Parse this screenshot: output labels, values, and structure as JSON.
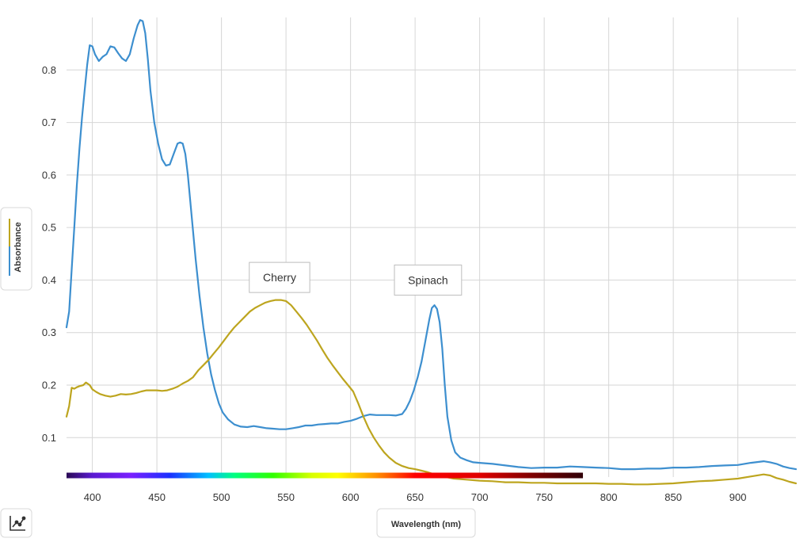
{
  "chart_data": {
    "type": "line",
    "title": "",
    "xlabel": "Wavelength (nm)",
    "ylabel": "Absorbance",
    "xlim": [
      380,
      945
    ],
    "ylim": [
      0.025,
      0.9
    ],
    "x_ticks": [
      400,
      450,
      500,
      550,
      600,
      650,
      700,
      750,
      800,
      850,
      900
    ],
    "y_ticks": [
      0.1,
      0.2,
      0.3,
      0.4,
      0.5,
      0.6,
      0.7,
      0.8
    ],
    "grid": true,
    "legend": "none",
    "series": [
      {
        "name": "Spinach",
        "color": "#3d8fcf",
        "points": [
          [
            380,
            0.31
          ],
          [
            382,
            0.34
          ],
          [
            384,
            0.42
          ],
          [
            386,
            0.5
          ],
          [
            388,
            0.58
          ],
          [
            390,
            0.65
          ],
          [
            392,
            0.71
          ],
          [
            394,
            0.76
          ],
          [
            396,
            0.81
          ],
          [
            398,
            0.847
          ],
          [
            400,
            0.845
          ],
          [
            402,
            0.83
          ],
          [
            405,
            0.817
          ],
          [
            408,
            0.825
          ],
          [
            411,
            0.83
          ],
          [
            414,
            0.845
          ],
          [
            417,
            0.843
          ],
          [
            420,
            0.832
          ],
          [
            423,
            0.822
          ],
          [
            426,
            0.817
          ],
          [
            429,
            0.83
          ],
          [
            432,
            0.86
          ],
          [
            435,
            0.885
          ],
          [
            437,
            0.895
          ],
          [
            439,
            0.893
          ],
          [
            441,
            0.87
          ],
          [
            443,
            0.82
          ],
          [
            445,
            0.76
          ],
          [
            448,
            0.7
          ],
          [
            451,
            0.66
          ],
          [
            454,
            0.63
          ],
          [
            457,
            0.618
          ],
          [
            460,
            0.62
          ],
          [
            463,
            0.64
          ],
          [
            466,
            0.66
          ],
          [
            468,
            0.662
          ],
          [
            470,
            0.66
          ],
          [
            472,
            0.64
          ],
          [
            474,
            0.6
          ],
          [
            477,
            0.52
          ],
          [
            480,
            0.44
          ],
          [
            483,
            0.37
          ],
          [
            486,
            0.31
          ],
          [
            489,
            0.26
          ],
          [
            492,
            0.22
          ],
          [
            495,
            0.19
          ],
          [
            498,
            0.165
          ],
          [
            501,
            0.148
          ],
          [
            505,
            0.135
          ],
          [
            510,
            0.125
          ],
          [
            515,
            0.121
          ],
          [
            520,
            0.12
          ],
          [
            525,
            0.122
          ],
          [
            530,
            0.12
          ],
          [
            535,
            0.118
          ],
          [
            540,
            0.117
          ],
          [
            545,
            0.116
          ],
          [
            550,
            0.116
          ],
          [
            555,
            0.118
          ],
          [
            560,
            0.12
          ],
          [
            565,
            0.123
          ],
          [
            570,
            0.123
          ],
          [
            575,
            0.125
          ],
          [
            580,
            0.126
          ],
          [
            585,
            0.127
          ],
          [
            590,
            0.127
          ],
          [
            595,
            0.13
          ],
          [
            600,
            0.132
          ],
          [
            605,
            0.136
          ],
          [
            610,
            0.141
          ],
          [
            615,
            0.144
          ],
          [
            620,
            0.143
          ],
          [
            625,
            0.143
          ],
          [
            630,
            0.143
          ],
          [
            635,
            0.142
          ],
          [
            640,
            0.145
          ],
          [
            643,
            0.155
          ],
          [
            646,
            0.17
          ],
          [
            649,
            0.19
          ],
          [
            652,
            0.215
          ],
          [
            655,
            0.245
          ],
          [
            658,
            0.285
          ],
          [
            661,
            0.325
          ],
          [
            663,
            0.347
          ],
          [
            665,
            0.352
          ],
          [
            667,
            0.345
          ],
          [
            669,
            0.32
          ],
          [
            671,
            0.27
          ],
          [
            673,
            0.2
          ],
          [
            675,
            0.14
          ],
          [
            678,
            0.095
          ],
          [
            681,
            0.072
          ],
          [
            685,
            0.062
          ],
          [
            690,
            0.057
          ],
          [
            695,
            0.053
          ],
          [
            700,
            0.052
          ],
          [
            710,
            0.05
          ],
          [
            720,
            0.047
          ],
          [
            730,
            0.044
          ],
          [
            740,
            0.042
          ],
          [
            750,
            0.043
          ],
          [
            760,
            0.043
          ],
          [
            770,
            0.045
          ],
          [
            780,
            0.044
          ],
          [
            790,
            0.043
          ],
          [
            800,
            0.042
          ],
          [
            810,
            0.04
          ],
          [
            820,
            0.04
          ],
          [
            830,
            0.041
          ],
          [
            840,
            0.041
          ],
          [
            850,
            0.043
          ],
          [
            860,
            0.043
          ],
          [
            870,
            0.044
          ],
          [
            880,
            0.046
          ],
          [
            890,
            0.047
          ],
          [
            900,
            0.048
          ],
          [
            910,
            0.052
          ],
          [
            920,
            0.055
          ],
          [
            925,
            0.053
          ],
          [
            930,
            0.05
          ],
          [
            935,
            0.045
          ],
          [
            940,
            0.042
          ],
          [
            945,
            0.04
          ]
        ]
      },
      {
        "name": "Cherry",
        "color": "#bda51f",
        "points": [
          [
            380,
            0.14
          ],
          [
            382,
            0.16
          ],
          [
            384,
            0.195
          ],
          [
            386,
            0.193
          ],
          [
            388,
            0.196
          ],
          [
            390,
            0.198
          ],
          [
            393,
            0.2
          ],
          [
            395,
            0.205
          ],
          [
            398,
            0.2
          ],
          [
            400,
            0.192
          ],
          [
            403,
            0.187
          ],
          [
            406,
            0.183
          ],
          [
            410,
            0.18
          ],
          [
            414,
            0.178
          ],
          [
            418,
            0.18
          ],
          [
            422,
            0.183
          ],
          [
            426,
            0.182
          ],
          [
            430,
            0.183
          ],
          [
            434,
            0.185
          ],
          [
            438,
            0.188
          ],
          [
            442,
            0.19
          ],
          [
            446,
            0.19
          ],
          [
            450,
            0.19
          ],
          [
            454,
            0.189
          ],
          [
            458,
            0.19
          ],
          [
            462,
            0.193
          ],
          [
            466,
            0.197
          ],
          [
            470,
            0.203
          ],
          [
            474,
            0.208
          ],
          [
            478,
            0.215
          ],
          [
            482,
            0.228
          ],
          [
            486,
            0.238
          ],
          [
            490,
            0.248
          ],
          [
            494,
            0.26
          ],
          [
            498,
            0.272
          ],
          [
            502,
            0.285
          ],
          [
            506,
            0.298
          ],
          [
            510,
            0.31
          ],
          [
            514,
            0.32
          ],
          [
            518,
            0.33
          ],
          [
            522,
            0.34
          ],
          [
            526,
            0.347
          ],
          [
            530,
            0.352
          ],
          [
            534,
            0.357
          ],
          [
            538,
            0.36
          ],
          [
            542,
            0.362
          ],
          [
            546,
            0.362
          ],
          [
            550,
            0.36
          ],
          [
            554,
            0.352
          ],
          [
            558,
            0.34
          ],
          [
            562,
            0.328
          ],
          [
            566,
            0.315
          ],
          [
            570,
            0.3
          ],
          [
            574,
            0.285
          ],
          [
            578,
            0.268
          ],
          [
            582,
            0.252
          ],
          [
            586,
            0.238
          ],
          [
            590,
            0.225
          ],
          [
            594,
            0.212
          ],
          [
            598,
            0.2
          ],
          [
            602,
            0.188
          ],
          [
            606,
            0.165
          ],
          [
            610,
            0.14
          ],
          [
            614,
            0.118
          ],
          [
            618,
            0.1
          ],
          [
            622,
            0.085
          ],
          [
            626,
            0.072
          ],
          [
            630,
            0.062
          ],
          [
            635,
            0.052
          ],
          [
            640,
            0.046
          ],
          [
            645,
            0.042
          ],
          [
            650,
            0.04
          ],
          [
            655,
            0.037
          ],
          [
            660,
            0.034
          ],
          [
            665,
            0.03
          ],
          [
            670,
            0.027
          ],
          [
            680,
            0.022
          ],
          [
            690,
            0.02
          ],
          [
            700,
            0.018
          ],
          [
            710,
            0.017
          ],
          [
            720,
            0.015
          ],
          [
            730,
            0.015
          ],
          [
            740,
            0.014
          ],
          [
            750,
            0.014
          ],
          [
            760,
            0.013
          ],
          [
            770,
            0.013
          ],
          [
            780,
            0.013
          ],
          [
            790,
            0.013
          ],
          [
            800,
            0.012
          ],
          [
            810,
            0.012
          ],
          [
            820,
            0.011
          ],
          [
            830,
            0.011
          ],
          [
            840,
            0.012
          ],
          [
            850,
            0.013
          ],
          [
            860,
            0.015
          ],
          [
            870,
            0.017
          ],
          [
            880,
            0.018
          ],
          [
            890,
            0.02
          ],
          [
            900,
            0.022
          ],
          [
            910,
            0.026
          ],
          [
            920,
            0.03
          ],
          [
            925,
            0.028
          ],
          [
            930,
            0.023
          ],
          [
            935,
            0.02
          ],
          [
            940,
            0.016
          ],
          [
            945,
            0.013
          ]
        ]
      }
    ],
    "annotations": [
      {
        "text": "Cherry",
        "x": 545,
        "y": 0.405
      },
      {
        "text": "Spinach",
        "x": 660,
        "y": 0.4
      }
    ],
    "spectrum_bar": {
      "x_range": [
        380,
        780
      ],
      "y": 0.028,
      "stops": [
        {
          "nm": 380,
          "color": "#2a0a55"
        },
        {
          "nm": 400,
          "color": "#5a1ad0"
        },
        {
          "nm": 430,
          "color": "#7a20ff"
        },
        {
          "nm": 460,
          "color": "#1a30ff"
        },
        {
          "nm": 490,
          "color": "#00c0ff"
        },
        {
          "nm": 510,
          "color": "#00ff80"
        },
        {
          "nm": 540,
          "color": "#30ff00"
        },
        {
          "nm": 570,
          "color": "#d8ff00"
        },
        {
          "nm": 590,
          "color": "#ffff00"
        },
        {
          "nm": 620,
          "color": "#ff9000"
        },
        {
          "nm": 650,
          "color": "#ff0000"
        },
        {
          "nm": 700,
          "color": "#e00000"
        },
        {
          "nm": 740,
          "color": "#800000"
        },
        {
          "nm": 780,
          "color": "#300008"
        }
      ]
    }
  },
  "toolbar": {
    "chart_type_icon": "line-chart-icon"
  }
}
